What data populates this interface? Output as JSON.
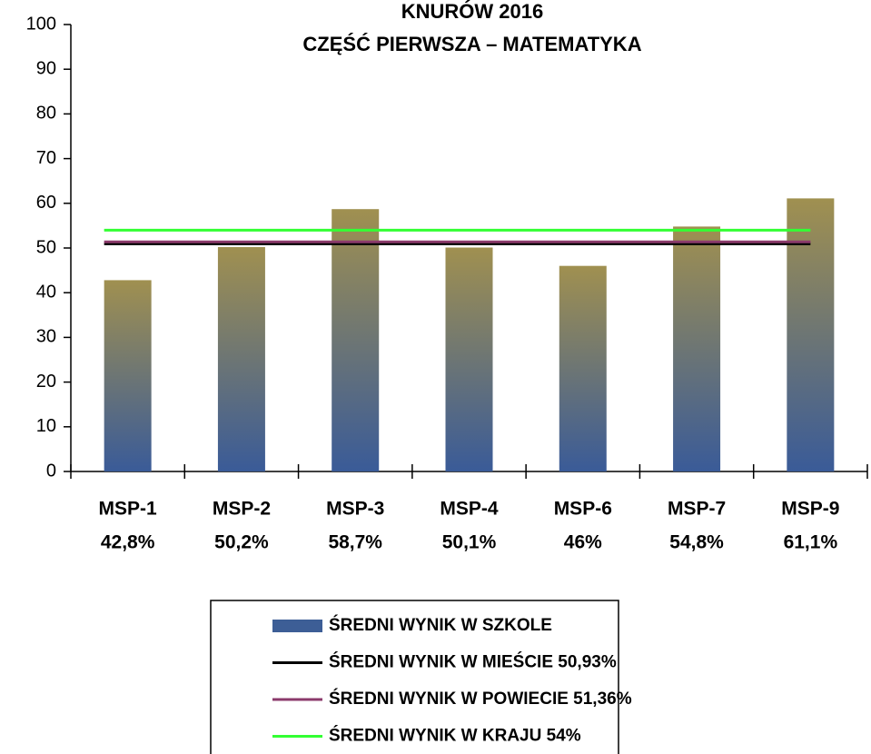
{
  "chart_data": {
    "type": "bar",
    "title": "KNURÓW 2016",
    "subtitle": "CZĘŚĆ PIERWSZA – MATEMATYKA",
    "categories": [
      "MSP-1",
      "MSP-2",
      "MSP-3",
      "MSP-4",
      "MSP-6",
      "MSP-7",
      "MSP-9"
    ],
    "value_labels": [
      "42,8%",
      "50,2%",
      "58,7%",
      "50,1%",
      "46%",
      "54,8%",
      "61,1%"
    ],
    "series": [
      {
        "name": "ŚREDNI WYNIK W SZKOLE",
        "type": "bar",
        "color": "#3d5e96",
        "gradient": [
          "#a09050",
          "#3a5b98"
        ],
        "values": [
          42.8,
          50.2,
          58.7,
          50.1,
          46,
          54.8,
          61.1
        ]
      },
      {
        "name": "ŚREDNI WYNIK W MIEŚCIE 50,93%",
        "type": "line",
        "color": "#000000",
        "values": [
          50.93,
          50.93,
          50.93,
          50.93,
          50.93,
          50.93,
          50.93
        ]
      },
      {
        "name": "ŚREDNI WYNIK W POWIECIE 51,36%",
        "type": "line",
        "color": "#8b3a6b",
        "values": [
          51.36,
          51.36,
          51.36,
          51.36,
          51.36,
          51.36,
          51.36
        ]
      },
      {
        "name": "ŚREDNI WYNIK W KRAJU 54%",
        "type": "line",
        "color": "#33ff33",
        "values": [
          54,
          54,
          54,
          54,
          54,
          54,
          54
        ]
      }
    ],
    "ylim": [
      0,
      100
    ],
    "yticks": [
      0,
      10,
      20,
      30,
      40,
      50,
      60,
      70,
      80,
      90,
      100
    ]
  }
}
